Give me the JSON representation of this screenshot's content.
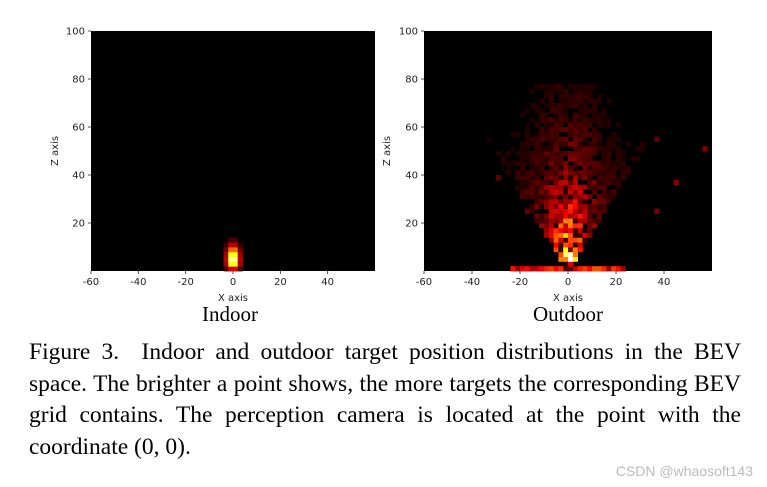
{
  "chart_data": [
    {
      "type": "heatmap",
      "title": "Indoor",
      "xlabel": "X axis",
      "ylabel": "Z axis",
      "xlim": [
        -60,
        60
      ],
      "ylim": [
        0,
        100
      ],
      "xticks": [
        -60,
        -40,
        -20,
        0,
        20,
        40
      ],
      "yticks": [
        20,
        40,
        60,
        80,
        100
      ],
      "colormap": "hot",
      "description_values": {
        "peak_x": 0,
        "peak_z": 5,
        "z_extent": 17,
        "x_spread": 5
      }
    },
    {
      "type": "heatmap",
      "title": "Outdoor",
      "xlabel": "X axis",
      "ylabel": "Z axis",
      "xlim": [
        -60,
        60
      ],
      "ylim": [
        0,
        100
      ],
      "xticks": [
        -60,
        -40,
        -20,
        0,
        20,
        40
      ],
      "yticks": [
        20,
        40,
        60,
        80,
        100
      ],
      "colormap": "hot",
      "description_values": {
        "peak_x": 0,
        "peak_z": 5,
        "z_extent": 75,
        "x_spread": 40
      }
    }
  ],
  "caption": {
    "label": "Figure 3.",
    "text": "Indoor and outdoor target position distributions in the BEV space. The brighter a point shows, the more targets the corresponding BEV grid contains. The perception camera is located at the point with the coordinate (0, 0)."
  },
  "watermark": "CSDN @whaosoft143",
  "colors": {
    "background": "#000000",
    "hot_mid": "#e85a00",
    "hot_high": "#ffe066"
  }
}
